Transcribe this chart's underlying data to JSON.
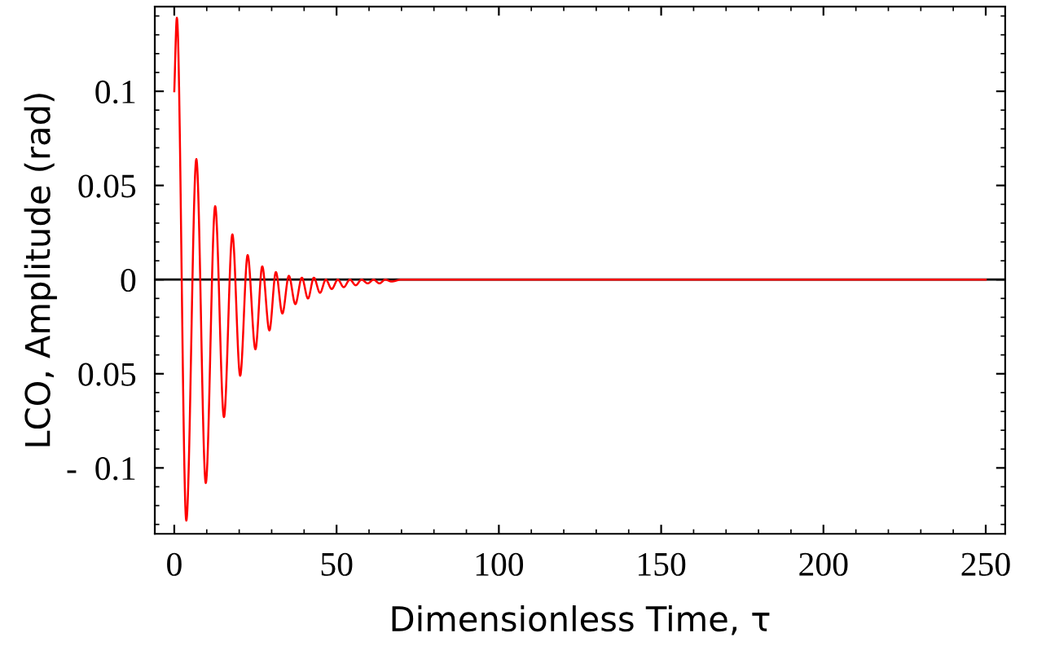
{
  "chart_data": {
    "type": "line",
    "xlabel": "Dimensionless Time, τ",
    "ylabel": "LCO, Amplitude (rad)",
    "xlim": [
      -6,
      256
    ],
    "ylim": [
      -0.135,
      0.145
    ],
    "xticks": [
      0,
      {
        "value": 10,
        "label": null
      },
      {
        "value": 20,
        "label": null
      },
      {
        "value": 30,
        "label": null
      },
      {
        "value": 40,
        "label": null
      },
      50,
      {
        "value": 60,
        "label": null
      },
      {
        "value": 70,
        "label": null
      },
      {
        "value": 80,
        "label": null
      },
      {
        "value": 90,
        "label": null
      },
      100,
      {
        "value": 110,
        "label": null
      },
      {
        "value": 120,
        "label": null
      },
      {
        "value": 130,
        "label": null
      },
      {
        "value": 140,
        "label": null
      },
      150,
      {
        "value": 160,
        "label": null
      },
      {
        "value": 170,
        "label": null
      },
      {
        "value": 180,
        "label": null
      },
      {
        "value": 190,
        "label": null
      },
      200,
      {
        "value": 210,
        "label": null
      },
      {
        "value": 220,
        "label": null
      },
      {
        "value": 230,
        "label": null
      },
      {
        "value": 240,
        "label": null
      },
      250
    ],
    "yticks": [
      {
        "value": -0.13,
        "label": null
      },
      {
        "value": -0.12,
        "label": null
      },
      {
        "value": -0.11,
        "label": null
      },
      {
        "value": -0.1,
        "label": "-  0.1"
      },
      {
        "value": -0.09,
        "label": null
      },
      {
        "value": -0.08,
        "label": null
      },
      {
        "value": -0.07,
        "label": null
      },
      {
        "value": -0.06,
        "label": null
      },
      {
        "value": -0.05,
        "label": "0.05"
      },
      {
        "value": -0.04,
        "label": null
      },
      {
        "value": -0.03,
        "label": null
      },
      {
        "value": -0.02,
        "label": null
      },
      {
        "value": -0.01,
        "label": null
      },
      0,
      {
        "value": 0.01,
        "label": null
      },
      {
        "value": 0.02,
        "label": null
      },
      {
        "value": 0.03,
        "label": null
      },
      {
        "value": 0.04,
        "label": null
      },
      0.05,
      {
        "value": 0.06,
        "label": null
      },
      {
        "value": 0.07,
        "label": null
      },
      {
        "value": 0.08,
        "label": null
      },
      {
        "value": 0.09,
        "label": null
      },
      0.1,
      {
        "value": 0.11,
        "label": null
      },
      {
        "value": 0.12,
        "label": null
      },
      {
        "value": 0.13,
        "label": null
      },
      {
        "value": 0.14,
        "label": null
      }
    ],
    "grid": false,
    "marker": "none",
    "line_style": "solid",
    "ref_lines": [
      {
        "axis": "y",
        "value": 0,
        "label": null,
        "color": "#000000"
      }
    ],
    "series": [
      {
        "color": "#ff0000",
        "x": [
          0,
          0.8,
          3.7,
          6.8,
          9.7,
          12.6,
          15.3,
          17.9,
          20.3,
          22.6,
          25.0,
          27.1,
          29.3,
          31.3,
          33.3,
          35.3,
          37.3,
          39.3,
          41.2,
          43.0,
          44.9,
          46.7,
          48.5,
          50.4,
          52.2,
          54.1,
          55.9,
          57.7,
          59.6,
          61.4,
          63.2,
          65.0,
          66.9,
          70,
          250
        ],
        "values": [
          0.1,
          0.139,
          -0.128,
          0.064,
          -0.108,
          0.039,
          -0.073,
          0.024,
          -0.051,
          0.013,
          -0.037,
          0.007,
          -0.027,
          0.004,
          -0.018,
          0.002,
          -0.013,
          0.001,
          -0.01,
          0.001,
          -0.007,
          0,
          -0.005,
          0,
          -0.004,
          0,
          -0.003,
          0,
          -0.002,
          0,
          -0.002,
          0,
          -0.001,
          0,
          0
        ]
      }
    ]
  }
}
